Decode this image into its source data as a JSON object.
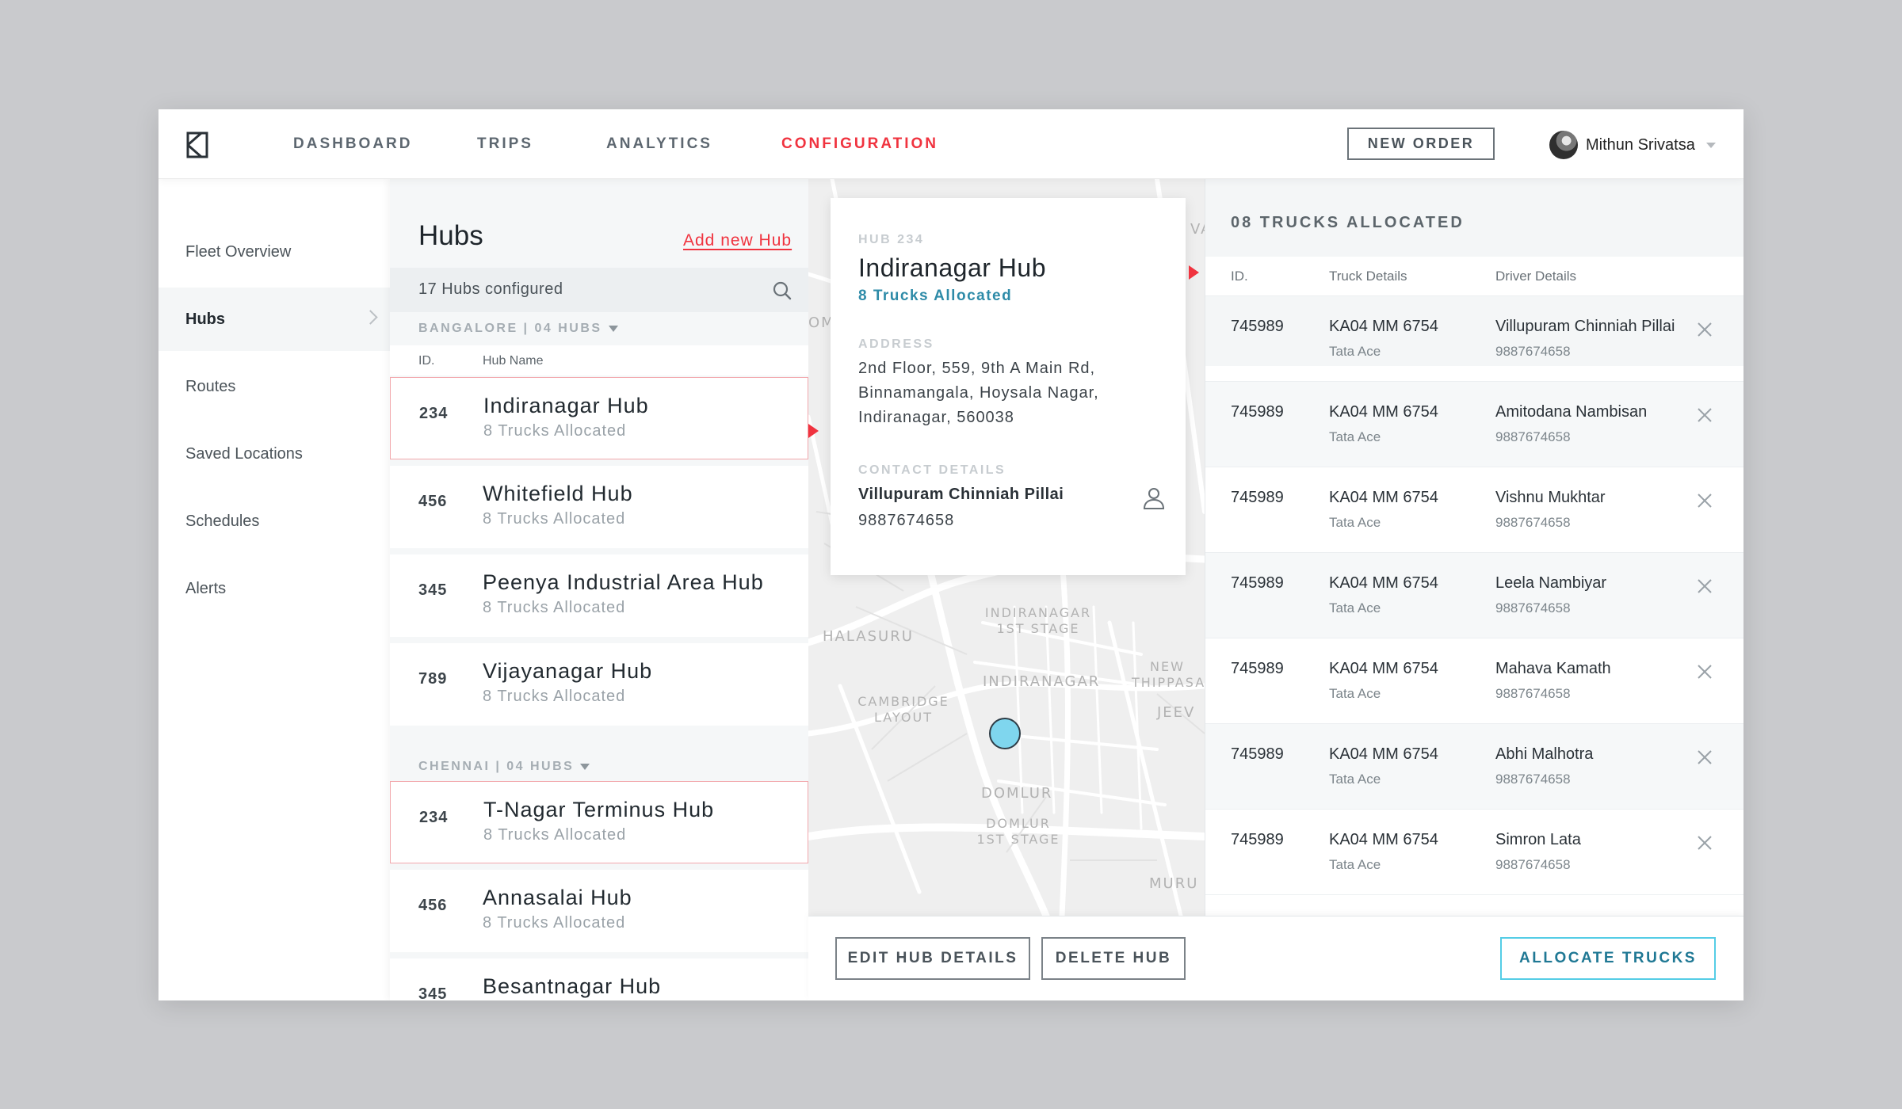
{
  "nav": {
    "items": [
      {
        "label": "DASHBOARD",
        "active": false
      },
      {
        "label": "TRIPS",
        "active": false
      },
      {
        "label": "ANALYTICS",
        "active": false
      },
      {
        "label": "CONFIGURATION",
        "active": true
      }
    ],
    "new_order_label": "NEW ORDER",
    "user_name": "Mithun Srivatsa",
    "accent_color": "#f0333f"
  },
  "sidebar": {
    "items": [
      {
        "label": "Fleet Overview"
      },
      {
        "label": "Hubs",
        "active": true
      },
      {
        "label": "Routes"
      },
      {
        "label": "Saved Locations"
      },
      {
        "label": "Schedules"
      },
      {
        "label": "Alerts"
      }
    ]
  },
  "hubs": {
    "title": "Hubs",
    "add_label": "Add new Hub",
    "count_label": "17 Hubs configured",
    "col_id": "ID.",
    "col_name": "Hub Name",
    "groups": [
      {
        "label": "BANGALORE | 04 HUBS",
        "rows": [
          {
            "id": "234",
            "name": "Indiranagar Hub",
            "sub": "8 Trucks Allocated",
            "selected": true
          },
          {
            "id": "456",
            "name": "Whitefield Hub",
            "sub": "8 Trucks Allocated"
          },
          {
            "id": "345",
            "name": "Peenya Industrial Area Hub",
            "sub": "8 Trucks Allocated"
          },
          {
            "id": "789",
            "name": "Vijayanagar Hub",
            "sub": "8 Trucks Allocated"
          }
        ]
      },
      {
        "label": "CHENNAI | 04 HUBS",
        "rows": [
          {
            "id": "234",
            "name": "T-Nagar Terminus Hub",
            "sub": "8 Trucks Allocated",
            "selected": true
          },
          {
            "id": "456",
            "name": "Annasalai Hub",
            "sub": "8 Trucks Allocated"
          },
          {
            "id": "345",
            "name": "Besantnagar Hub",
            "sub": ""
          }
        ]
      }
    ]
  },
  "map": {
    "labels": [
      "HALASURU",
      "INDIRANAGAR 1ST STAGE",
      "INDIRANAGAR",
      "NEW THIPPASA",
      "CAMBRIDGE LAYOUT",
      "JEEV",
      "DOMLUR",
      "DOMLUR 1ST STAGE",
      "MURU",
      "OM",
      "VA"
    ],
    "pin_color": "#7fd6ee"
  },
  "hub_detail": {
    "hub_label": "HUB 234",
    "name": "Indiranagar Hub",
    "trucks": "8 Trucks Allocated",
    "address_label": "ADDRESS",
    "address": "2nd Floor, 559, 9th A Main Rd, Binnamangala, Hoysala Nagar, Indiranagar, 560038",
    "contact_label": "CONTACT DETAILS",
    "contact_name": "Villupuram Chinniah Pillai",
    "contact_phone": "9887674658"
  },
  "trucks": {
    "title": "08 TRUCKS ALLOCATED",
    "col_id": "ID.",
    "col_truck": "Truck Details",
    "col_driver": "Driver Details",
    "rows": [
      {
        "id": "745989",
        "plate": "KA04 MM 6754",
        "model": "Tata Ace",
        "driver": "Villupuram Chinniah Pillai",
        "phone": "9887674658"
      },
      {
        "id": "745989",
        "plate": "KA04 MM 6754",
        "model": "Tata Ace",
        "driver": "Amitodana Nambisan",
        "phone": "9887674658"
      },
      {
        "id": "745989",
        "plate": "KA04 MM 6754",
        "model": "Tata Ace",
        "driver": "Vishnu Mukhtar",
        "phone": "9887674658"
      },
      {
        "id": "745989",
        "plate": "KA04 MM 6754",
        "model": "Tata Ace",
        "driver": "Leela Nambiyar",
        "phone": "9887674658"
      },
      {
        "id": "745989",
        "plate": "KA04 MM 6754",
        "model": "Tata Ace",
        "driver": "Mahava Kamath",
        "phone": "9887674658"
      },
      {
        "id": "745989",
        "plate": "KA04 MM 6754",
        "model": "Tata Ace",
        "driver": "Abhi Malhotra",
        "phone": "9887674658"
      },
      {
        "id": "745989",
        "plate": "KA04 MM 6754",
        "model": "Tata Ace",
        "driver": "Simron Lata",
        "phone": "9887674658"
      }
    ]
  },
  "actions": {
    "edit_label": "EDIT HUB DETAILS",
    "delete_label": "DELETE HUB",
    "allocate_label": "ALLOCATE TRUCKS"
  }
}
